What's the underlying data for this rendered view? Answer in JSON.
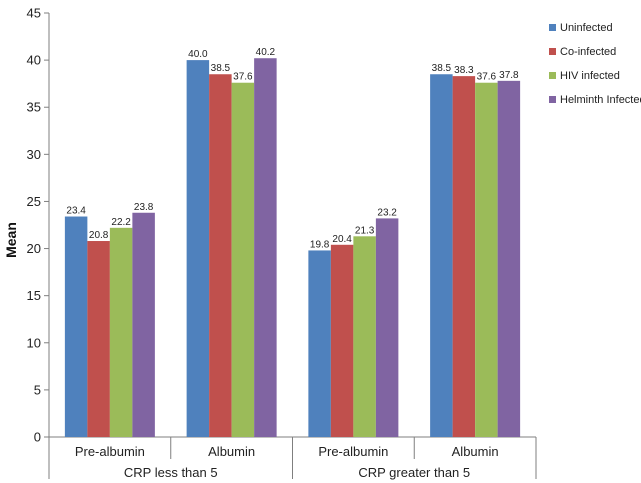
{
  "chart_data": {
    "type": "bar",
    "ylabel": "Mean",
    "ylim": [
      0,
      45
    ],
    "yticks": [
      0,
      5,
      10,
      15,
      20,
      25,
      30,
      35,
      40,
      45
    ],
    "grid": false,
    "legend_position": "top-right",
    "categories": [
      "Pre-albumin",
      "Albumin",
      "Pre-albumin",
      "Albumin"
    ],
    "groups": [
      {
        "label": "CRP less than 5",
        "categories": [
          "Pre-albumin",
          "Albumin"
        ]
      },
      {
        "label": "CRP greater than 5",
        "categories": [
          "Pre-albumin",
          "Albumin"
        ]
      }
    ],
    "series": [
      {
        "name": "Uninfected",
        "color": "#4F81BD",
        "values": [
          23.4,
          40.0,
          19.8,
          38.5
        ],
        "labels": [
          "23.4",
          "40.0",
          "19.8",
          "38.5"
        ]
      },
      {
        "name": "Co-infected",
        "color": "#C0504D",
        "values": [
          20.8,
          38.5,
          20.4,
          38.3
        ],
        "labels": [
          "20.8",
          "38.5",
          "20.4",
          "38.3"
        ]
      },
      {
        "name": "HIV infected",
        "color": "#9BBB59",
        "values": [
          22.2,
          37.6,
          21.3,
          37.6
        ],
        "labels": [
          "22.2",
          "37.6",
          "21.3",
          "37.6"
        ]
      },
      {
        "name": "Helminth Infected",
        "color": "#8064A2",
        "values": [
          23.8,
          40.2,
          23.2,
          37.8
        ],
        "labels": [
          "23.8",
          "40.2",
          "23.2",
          "37.8"
        ]
      }
    ]
  }
}
